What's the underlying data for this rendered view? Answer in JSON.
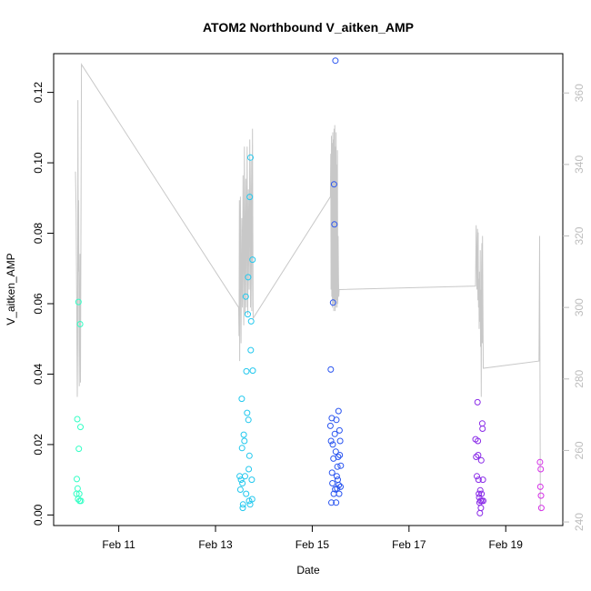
{
  "chart_data": {
    "type": "scatter",
    "title": "ATOM2 Northbound V_aitken_AMP",
    "xlabel": "Date",
    "ylabel": "V_aitken_AMP",
    "xlim": [
      "2024-02-09 22:00",
      "2024-02-19 22:00"
    ],
    "ylim": [
      -0.003,
      0.131
    ],
    "y2lim": [
      239,
      371
    ],
    "x_ticks": [
      {
        "value": "2024-02-11 00:00",
        "label": "Feb 11"
      },
      {
        "value": "2024-02-13 00:00",
        "label": "Feb 13"
      },
      {
        "value": "2024-02-15 00:00",
        "label": "Feb 15"
      },
      {
        "value": "2024-02-17 00:00",
        "label": "Feb 17"
      },
      {
        "value": "2024-02-19 00:00",
        "label": "Feb 19"
      }
    ],
    "y_ticks": [
      0.0,
      0.02,
      0.04,
      0.06,
      0.08,
      0.1,
      0.12
    ],
    "y_tick_labels": [
      "0.00",
      "0.02",
      "0.04",
      "0.06",
      "0.08",
      "0.10",
      "0.12"
    ],
    "y2_ticks": [
      240,
      260,
      280,
      300,
      320,
      340,
      360
    ],
    "y2_tick_labels": [
      "240",
      "260",
      "280",
      "300",
      "320",
      "340",
      "360"
    ],
    "grid": false,
    "legend": "none",
    "series": [
      {
        "type": "scatter",
        "marker": "open-circle",
        "color_by_time": true,
        "points": [
          {
            "x": "2024-02-10 03:00",
            "y": 0.006,
            "color": "#33ffc5"
          },
          {
            "x": "2024-02-10 03:12",
            "y": 0.0102,
            "color": "#33ffc5"
          },
          {
            "x": "2024-02-10 03:24",
            "y": 0.0272,
            "color": "#33ffc5"
          },
          {
            "x": "2024-02-10 03:36",
            "y": 0.0075,
            "color": "#33ffc5"
          },
          {
            "x": "2024-02-10 03:48",
            "y": 0.0045,
            "color": "#33ffc5"
          },
          {
            "x": "2024-02-10 04:00",
            "y": 0.0605,
            "color": "#33ffc5"
          },
          {
            "x": "2024-02-10 04:12",
            "y": 0.0188,
            "color": "#33ffc5"
          },
          {
            "x": "2024-02-10 04:24",
            "y": 0.006,
            "color": "#33ffc5"
          },
          {
            "x": "2024-02-10 04:36",
            "y": 0.004,
            "color": "#33ffc5"
          },
          {
            "x": "2024-02-10 04:48",
            "y": 0.0542,
            "color": "#33ffc5"
          },
          {
            "x": "2024-02-10 05:00",
            "y": 0.025,
            "color": "#33ffc5"
          },
          {
            "x": "2024-02-10 05:12",
            "y": 0.004,
            "color": "#33ffc5"
          },
          {
            "x": "2024-02-13 12:00",
            "y": 0.011,
            "color": "#22c8ee"
          },
          {
            "x": "2024-02-13 12:20",
            "y": 0.0072,
            "color": "#22c8ee"
          },
          {
            "x": "2024-02-13 12:40",
            "y": 0.01,
            "color": "#22c8ee"
          },
          {
            "x": "2024-02-13 13:00",
            "y": 0.033,
            "color": "#22c8ee"
          },
          {
            "x": "2024-02-13 13:10",
            "y": 0.019,
            "color": "#22c8ee"
          },
          {
            "x": "2024-02-13 13:20",
            "y": 0.009,
            "color": "#22c8ee"
          },
          {
            "x": "2024-02-13 13:30",
            "y": 0.002,
            "color": "#22c8ee"
          },
          {
            "x": "2024-02-13 13:40",
            "y": 0.003,
            "color": "#22c8ee"
          },
          {
            "x": "2024-02-13 14:00",
            "y": 0.0228,
            "color": "#22c8ee"
          },
          {
            "x": "2024-02-13 14:20",
            "y": 0.021,
            "color": "#22c8ee"
          },
          {
            "x": "2024-02-13 14:40",
            "y": 0.011,
            "color": "#22c8ee"
          },
          {
            "x": "2024-02-13 15:00",
            "y": 0.062,
            "color": "#22c8ee"
          },
          {
            "x": "2024-02-13 15:10",
            "y": 0.006,
            "color": "#22c8ee"
          },
          {
            "x": "2024-02-13 15:20",
            "y": 0.0408,
            "color": "#22c8ee"
          },
          {
            "x": "2024-02-13 15:40",
            "y": 0.029,
            "color": "#22c8ee"
          },
          {
            "x": "2024-02-13 16:00",
            "y": 0.057,
            "color": "#22c8ee"
          },
          {
            "x": "2024-02-13 16:10",
            "y": 0.0675,
            "color": "#22c8ee"
          },
          {
            "x": "2024-02-13 16:20",
            "y": 0.027,
            "color": "#22c8ee"
          },
          {
            "x": "2024-02-13 16:30",
            "y": 0.013,
            "color": "#22c8ee"
          },
          {
            "x": "2024-02-13 16:40",
            "y": 0.004,
            "color": "#22c8ee"
          },
          {
            "x": "2024-02-13 16:50",
            "y": 0.0168,
            "color": "#22c8ee"
          },
          {
            "x": "2024-02-13 17:00",
            "y": 0.0903,
            "color": "#22c8ee"
          },
          {
            "x": "2024-02-13 17:10",
            "y": 0.003,
            "color": "#22c8ee"
          },
          {
            "x": "2024-02-13 17:20",
            "y": 0.1015,
            "color": "#22c8ee"
          },
          {
            "x": "2024-02-13 17:30",
            "y": 0.0468,
            "color": "#22c8ee"
          },
          {
            "x": "2024-02-13 17:40",
            "y": 0.055,
            "color": "#22c8ee"
          },
          {
            "x": "2024-02-13 18:00",
            "y": 0.01,
            "color": "#22c8ee"
          },
          {
            "x": "2024-02-13 18:10",
            "y": 0.0045,
            "color": "#22c8ee"
          },
          {
            "x": "2024-02-13 18:20",
            "y": 0.0725,
            "color": "#22c8ee"
          },
          {
            "x": "2024-02-13 18:30",
            "y": 0.041,
            "color": "#22c8ee"
          },
          {
            "x": "2024-02-15 09:00",
            "y": 0.0253,
            "color": "#2a55f0"
          },
          {
            "x": "2024-02-15 09:10",
            "y": 0.0413,
            "color": "#2a55f0"
          },
          {
            "x": "2024-02-15 09:20",
            "y": 0.021,
            "color": "#2a55f0"
          },
          {
            "x": "2024-02-15 09:30",
            "y": 0.0035,
            "color": "#2a55f0"
          },
          {
            "x": "2024-02-15 09:40",
            "y": 0.0275,
            "color": "#2a55f0"
          },
          {
            "x": "2024-02-15 09:50",
            "y": 0.012,
            "color": "#2a55f0"
          },
          {
            "x": "2024-02-15 10:00",
            "y": 0.009,
            "color": "#2a55f0"
          },
          {
            "x": "2024-02-15 10:10",
            "y": 0.02,
            "color": "#2a55f0"
          },
          {
            "x": "2024-02-15 10:20",
            "y": 0.0603,
            "color": "#2a55f0"
          },
          {
            "x": "2024-02-15 10:30",
            "y": 0.016,
            "color": "#2a55f0"
          },
          {
            "x": "2024-02-15 10:40",
            "y": 0.006,
            "color": "#2a55f0"
          },
          {
            "x": "2024-02-15 10:50",
            "y": 0.0939,
            "color": "#2a55f0"
          },
          {
            "x": "2024-02-15 11:00",
            "y": 0.0825,
            "color": "#2a55f0"
          },
          {
            "x": "2024-02-15 11:10",
            "y": 0.023,
            "color": "#2a55f0"
          },
          {
            "x": "2024-02-15 11:20",
            "y": 0.0073,
            "color": "#2a55f0"
          },
          {
            "x": "2024-02-15 11:30",
            "y": 0.129,
            "color": "#2a55f0"
          },
          {
            "x": "2024-02-15 11:40",
            "y": 0.018,
            "color": "#2a55f0"
          },
          {
            "x": "2024-02-15 11:50",
            "y": 0.0035,
            "color": "#2a55f0"
          },
          {
            "x": "2024-02-15 12:00",
            "y": 0.027,
            "color": "#2a55f0"
          },
          {
            "x": "2024-02-15 12:10",
            "y": 0.011,
            "color": "#2a55f0"
          },
          {
            "x": "2024-02-15 12:20",
            "y": 0.0075,
            "color": "#2a55f0"
          },
          {
            "x": "2024-02-15 12:30",
            "y": 0.0137,
            "color": "#2a55f0"
          },
          {
            "x": "2024-02-15 12:40",
            "y": 0.01,
            "color": "#2a55f0"
          },
          {
            "x": "2024-02-15 12:50",
            "y": 0.0165,
            "color": "#2a55f0"
          },
          {
            "x": "2024-02-15 13:00",
            "y": 0.0295,
            "color": "#2a55f0"
          },
          {
            "x": "2024-02-15 13:10",
            "y": 0.0085,
            "color": "#2a55f0"
          },
          {
            "x": "2024-02-15 13:20",
            "y": 0.006,
            "color": "#2a55f0"
          },
          {
            "x": "2024-02-15 13:30",
            "y": 0.024,
            "color": "#2a55f0"
          },
          {
            "x": "2024-02-15 13:40",
            "y": 0.017,
            "color": "#2a55f0"
          },
          {
            "x": "2024-02-15 13:50",
            "y": 0.021,
            "color": "#2a55f0"
          },
          {
            "x": "2024-02-15 14:00",
            "y": 0.008,
            "color": "#2a55f0"
          },
          {
            "x": "2024-02-15 14:10",
            "y": 0.014,
            "color": "#2a55f0"
          },
          {
            "x": "2024-02-18 09:00",
            "y": 0.0215,
            "color": "#8a2be8"
          },
          {
            "x": "2024-02-18 09:20",
            "y": 0.0165,
            "color": "#8a2be8"
          },
          {
            "x": "2024-02-18 09:40",
            "y": 0.011,
            "color": "#8a2be8"
          },
          {
            "x": "2024-02-18 10:00",
            "y": 0.032,
            "color": "#8a2be8"
          },
          {
            "x": "2024-02-18 10:10",
            "y": 0.021,
            "color": "#8a2be8"
          },
          {
            "x": "2024-02-18 10:20",
            "y": 0.017,
            "color": "#8a2be8"
          },
          {
            "x": "2024-02-18 10:30",
            "y": 0.01,
            "color": "#8a2be8"
          },
          {
            "x": "2024-02-18 10:40",
            "y": 0.006,
            "color": "#8a2be8"
          },
          {
            "x": "2024-02-18 10:50",
            "y": 0.005,
            "color": "#8a2be8"
          },
          {
            "x": "2024-02-18 11:00",
            "y": 0.0035,
            "color": "#8a2be8"
          },
          {
            "x": "2024-02-18 11:10",
            "y": 0.0005,
            "color": "#8a2be8"
          },
          {
            "x": "2024-02-18 11:20",
            "y": 0.007,
            "color": "#8a2be8"
          },
          {
            "x": "2024-02-18 11:30",
            "y": 0.004,
            "color": "#8a2be8"
          },
          {
            "x": "2024-02-18 11:40",
            "y": 0.002,
            "color": "#8a2be8"
          },
          {
            "x": "2024-02-18 11:50",
            "y": 0.0155,
            "color": "#8a2be8"
          },
          {
            "x": "2024-02-18 12:00",
            "y": 0.006,
            "color": "#8a2be8"
          },
          {
            "x": "2024-02-18 12:10",
            "y": 0.004,
            "color": "#8a2be8"
          },
          {
            "x": "2024-02-18 12:20",
            "y": 0.026,
            "color": "#8a2be8"
          },
          {
            "x": "2024-02-18 12:30",
            "y": 0.0245,
            "color": "#8a2be8"
          },
          {
            "x": "2024-02-18 12:40",
            "y": 0.01,
            "color": "#8a2be8"
          },
          {
            "x": "2024-02-18 12:50",
            "y": 0.004,
            "color": "#8a2be8"
          },
          {
            "x": "2024-02-19 17:00",
            "y": 0.015,
            "color": "#d633e8"
          },
          {
            "x": "2024-02-19 17:10",
            "y": 0.008,
            "color": "#d633e8"
          },
          {
            "x": "2024-02-19 17:20",
            "y": 0.013,
            "color": "#d633e8"
          },
          {
            "x": "2024-02-19 17:30",
            "y": 0.0055,
            "color": "#d633e8"
          },
          {
            "x": "2024-02-19 17:40",
            "y": 0.002,
            "color": "#d633e8"
          }
        ]
      },
      {
        "type": "line",
        "axis": "right",
        "color": "#c8c8c8",
        "points": [
          [
            "2024-02-10 02:30",
            338
          ],
          [
            "2024-02-10 02:50",
            327
          ],
          [
            "2024-02-10 03:10",
            297
          ],
          [
            "2024-02-10 03:25",
            275
          ],
          [
            "2024-02-10 03:35",
            290
          ],
          [
            "2024-02-10 03:45",
            358
          ],
          [
            "2024-02-10 03:55",
            310
          ],
          [
            "2024-02-10 04:05",
            330
          ],
          [
            "2024-02-10 04:15",
            295
          ],
          [
            "2024-02-10 04:25",
            278
          ],
          [
            "2024-02-10 04:35",
            300
          ],
          [
            "2024-02-10 04:45",
            315
          ],
          [
            "2024-02-10 05:00",
            279
          ],
          [
            "2024-02-10 05:30",
            368
          ],
          [
            "2024-02-13 11:30",
            300
          ],
          [
            "2024-02-13 11:40",
            292
          ],
          [
            "2024-02-13 11:50",
            330
          ],
          [
            "2024-02-13 12:00",
            285
          ],
          [
            "2024-02-13 12:20",
            331
          ],
          [
            "2024-02-13 12:40",
            290
          ],
          [
            "2024-02-13 13:00",
            325
          ],
          [
            "2024-02-13 13:20",
            300
          ],
          [
            "2024-02-13 13:40",
            337
          ],
          [
            "2024-02-13 14:00",
            295
          ],
          [
            "2024-02-13 14:20",
            345
          ],
          [
            "2024-02-13 14:40",
            298
          ],
          [
            "2024-02-13 15:00",
            336
          ],
          [
            "2024-02-13 15:20",
            300
          ],
          [
            "2024-02-13 15:40",
            345
          ],
          [
            "2024-02-13 16:00",
            298
          ],
          [
            "2024-02-13 16:20",
            333
          ],
          [
            "2024-02-13 16:40",
            305
          ],
          [
            "2024-02-13 17:00",
            347
          ],
          [
            "2024-02-13 17:20",
            300
          ],
          [
            "2024-02-13 17:40",
            341
          ],
          [
            "2024-02-13 18:00",
            299
          ],
          [
            "2024-02-13 18:20",
            350
          ],
          [
            "2024-02-13 18:40",
            297
          ],
          [
            "2024-02-15 09:00",
            331
          ],
          [
            "2024-02-15 09:10",
            343
          ],
          [
            "2024-02-15 09:20",
            305
          ],
          [
            "2024-02-15 09:30",
            348
          ],
          [
            "2024-02-15 09:40",
            303
          ],
          [
            "2024-02-15 09:50",
            346
          ],
          [
            "2024-02-15 10:00",
            300
          ],
          [
            "2024-02-15 10:10",
            349
          ],
          [
            "2024-02-15 10:20",
            301
          ],
          [
            "2024-02-15 10:30",
            347
          ],
          [
            "2024-02-15 10:40",
            299
          ],
          [
            "2024-02-15 10:50",
            350
          ],
          [
            "2024-02-15 11:00",
            301
          ],
          [
            "2024-02-15 11:10",
            351
          ],
          [
            "2024-02-15 11:20",
            299
          ],
          [
            "2024-02-15 11:30",
            345
          ],
          [
            "2024-02-15 11:40",
            300
          ],
          [
            "2024-02-15 11:50",
            349
          ],
          [
            "2024-02-15 12:00",
            302
          ],
          [
            "2024-02-15 12:10",
            340
          ],
          [
            "2024-02-15 12:20",
            300
          ],
          [
            "2024-02-15 12:30",
            344
          ],
          [
            "2024-02-15 12:40",
            301
          ],
          [
            "2024-02-15 12:50",
            320
          ],
          [
            "2024-02-15 13:00",
            308
          ],
          [
            "2024-02-15 13:10",
            303
          ],
          [
            "2024-02-15 13:20",
            305
          ],
          [
            "2024-02-15 13:30",
            305
          ],
          [
            "2024-02-18 09:00",
            306
          ],
          [
            "2024-02-18 09:20",
            323
          ],
          [
            "2024-02-18 09:40",
            305
          ],
          [
            "2024-02-18 10:00",
            322
          ],
          [
            "2024-02-18 10:10",
            302
          ],
          [
            "2024-02-18 10:20",
            321
          ],
          [
            "2024-02-18 10:30",
            300
          ],
          [
            "2024-02-18 10:40",
            308
          ],
          [
            "2024-02-18 10:50",
            294
          ],
          [
            "2024-02-18 11:00",
            310
          ],
          [
            "2024-02-18 11:10",
            296
          ],
          [
            "2024-02-18 11:20",
            316
          ],
          [
            "2024-02-18 11:30",
            289
          ],
          [
            "2024-02-18 11:40",
            305
          ],
          [
            "2024-02-18 11:50",
            275
          ],
          [
            "2024-02-18 12:00",
            310
          ],
          [
            "2024-02-18 12:10",
            318
          ],
          [
            "2024-02-18 12:20",
            290
          ],
          [
            "2024-02-18 12:30",
            320
          ],
          [
            "2024-02-18 12:50",
            283
          ],
          [
            "2024-02-19 16:30",
            285
          ],
          [
            "2024-02-19 16:50",
            320
          ],
          [
            "2024-02-19 17:10",
            243
          ]
        ]
      }
    ]
  }
}
